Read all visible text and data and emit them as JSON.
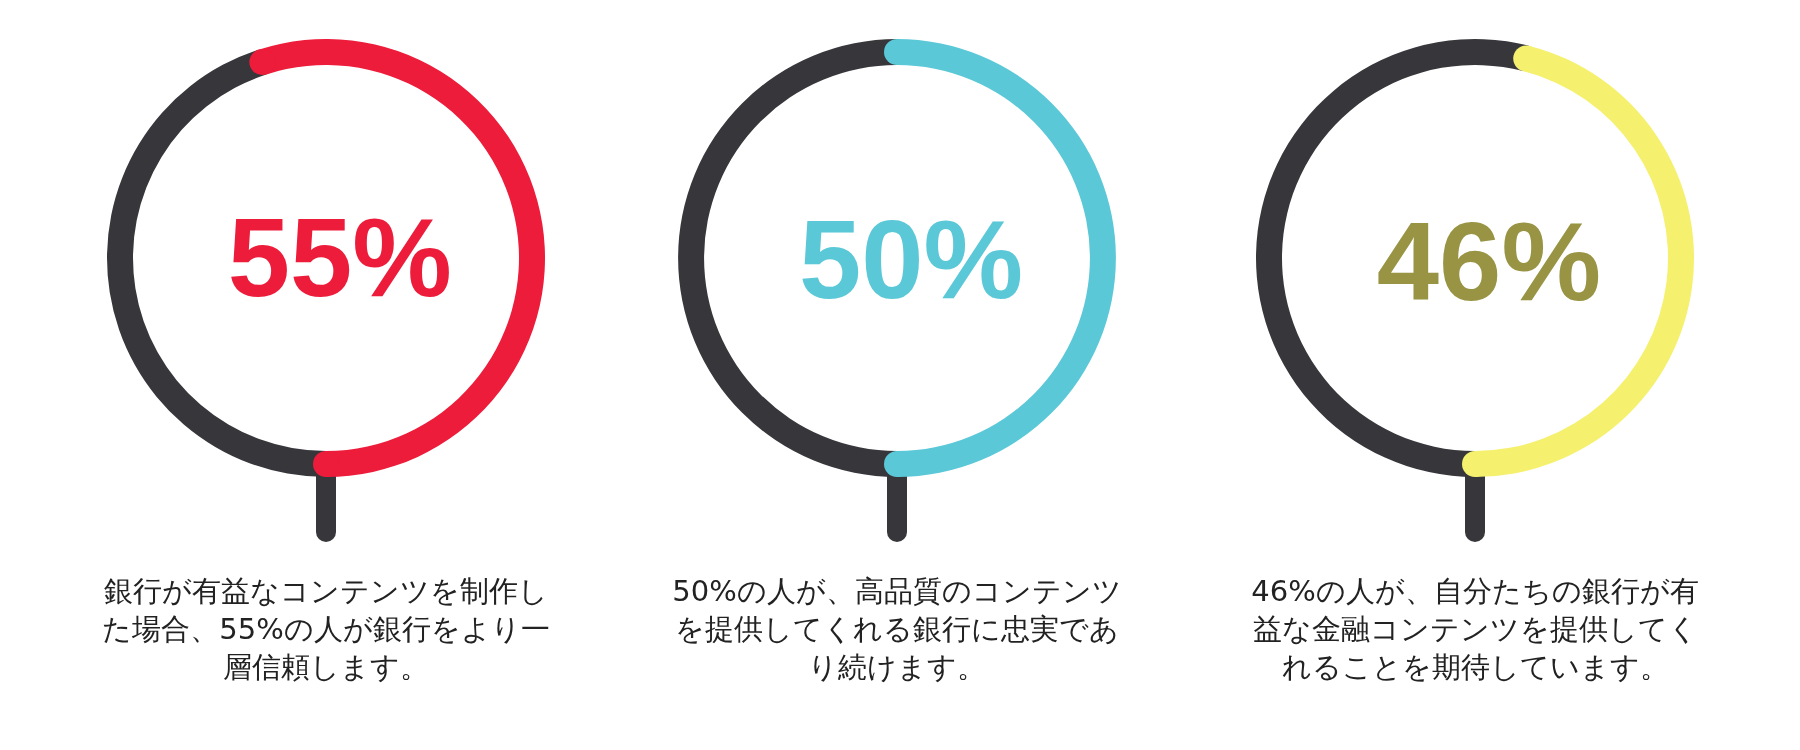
{
  "chart_data": [
    {
      "type": "donut",
      "categories": [
        null,
        null
      ],
      "values": [
        55,
        45
      ],
      "colors": [
        "#ed1c3a",
        "#37363b"
      ],
      "value_labels": [
        "55%",
        null
      ],
      "annotations": [
        "銀行が有益なコンテンツを制作した場合、55%の人が銀行をより一層信頼します。"
      ]
    },
    {
      "type": "donut",
      "categories": [
        null,
        null
      ],
      "values": [
        50,
        50
      ],
      "colors": [
        "#5bc8d8",
        "#37363b"
      ],
      "value_labels": [
        "50%",
        null
      ],
      "annotations": [
        "50%の人が、高品質のコンテンツを提供してくれる銀行に忠実であり続けます。"
      ]
    },
    {
      "type": "donut",
      "categories": [
        null,
        null
      ],
      "values": [
        46,
        54
      ],
      "colors": [
        "#f5f06e",
        "#37363b"
      ],
      "value_labels": [
        "46%",
        null
      ],
      "annotations": [
        "46%の人が、自分たちの銀行が有益な金融コンテンツを提供してくれることを期待しています。"
      ]
    }
  ]
}
